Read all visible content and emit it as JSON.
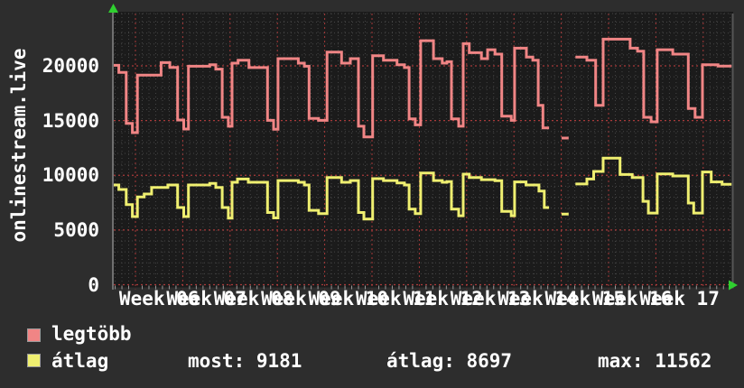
{
  "y_axis": {
    "title": "onlinestream.live",
    "tick_values": [
      0,
      5000,
      10000,
      15000,
      20000
    ]
  },
  "x_axis": {
    "labels": [
      "Week 06",
      "Week 07",
      "Week 08",
      "Week 09",
      "Week 10",
      "Week 11",
      "Week 12",
      "Week 13",
      "Week 14",
      "Week 15",
      "Week 16",
      "Week 17"
    ]
  },
  "legend": {
    "series": [
      {
        "label": "legtöbb",
        "color": "#f08585"
      },
      {
        "label": "átlag",
        "color": "#efef70"
      }
    ]
  },
  "stats": {
    "most": "most: 9181",
    "atlag": "átlag: 8697",
    "max": "max: 11562"
  },
  "colors": {
    "background": "#2d2d2d",
    "plot_background": "#1b1b1b",
    "grid_minor": "#454545",
    "grid_major_red": "#a83a3a",
    "axis_border": "#6f6f6f",
    "arrow_green": "#2fd02f",
    "text": "#ffffff"
  },
  "chart_data": {
    "type": "line",
    "line_style": "step",
    "title": "onlinestream.live",
    "x_unit": "days",
    "x_range_days": [
      0,
      91.4
    ],
    "first_week_gridline_day": 3.2,
    "days_per_week": 7,
    "ylim": [
      0,
      24780
    ],
    "y_major_step": 5000,
    "y_minor_step": 1000,
    "grid": true,
    "legend_position": "bottom",
    "stats": {
      "most": 9181,
      "atlag": 8697,
      "max": 11562
    },
    "series": [
      {
        "name": "legtöbb",
        "color": "#f08585",
        "points": [
          [
            0,
            20050
          ],
          [
            0.75,
            19400
          ],
          [
            1.85,
            14750
          ],
          [
            2.75,
            13900
          ],
          [
            3.5,
            19150
          ],
          [
            7.0,
            20300
          ],
          [
            8.3,
            19850
          ],
          [
            9.45,
            15050
          ],
          [
            10.35,
            14230
          ],
          [
            11.05,
            19970
          ],
          [
            14.2,
            20110
          ],
          [
            15.1,
            19700
          ],
          [
            16.05,
            15300
          ],
          [
            16.95,
            14480
          ],
          [
            17.5,
            20250
          ],
          [
            18.4,
            20520
          ],
          [
            20.0,
            19840
          ],
          [
            22.75,
            15020
          ],
          [
            23.65,
            14200
          ],
          [
            24.3,
            20660
          ],
          [
            27.3,
            20250
          ],
          [
            28.2,
            19970
          ],
          [
            28.9,
            15200
          ],
          [
            30.3,
            15020
          ],
          [
            31.55,
            21260
          ],
          [
            33.7,
            20250
          ],
          [
            35.0,
            20660
          ],
          [
            36.2,
            14480
          ],
          [
            37.0,
            13500
          ],
          [
            38.3,
            20930
          ],
          [
            39.9,
            20520
          ],
          [
            41.9,
            20110
          ],
          [
            43.0,
            19840
          ],
          [
            43.7,
            15150
          ],
          [
            44.6,
            14610
          ],
          [
            45.4,
            22300
          ],
          [
            47.3,
            20660
          ],
          [
            48.6,
            20250
          ],
          [
            49.3,
            20380
          ],
          [
            49.96,
            15150
          ],
          [
            51.03,
            14480
          ],
          [
            51.7,
            22030
          ],
          [
            52.6,
            21200
          ],
          [
            54.4,
            20660
          ],
          [
            55.3,
            21480
          ],
          [
            56.4,
            21070
          ],
          [
            57.4,
            15400
          ],
          [
            58.8,
            15020
          ],
          [
            59.3,
            21620
          ],
          [
            61.05,
            20800
          ],
          [
            62.0,
            20520
          ],
          [
            62.8,
            16400
          ],
          [
            63.5,
            14330
          ],
          [
            64.4,
            null
          ],
          [
            66.25,
            13400
          ],
          [
            67.3,
            null
          ],
          [
            68.3,
            20800
          ],
          [
            70.0,
            20520
          ],
          [
            71.3,
            16400
          ],
          [
            72.4,
            22440
          ],
          [
            76.4,
            21620
          ],
          [
            77.5,
            21340
          ],
          [
            78.4,
            15300
          ],
          [
            79.5,
            14890
          ],
          [
            80.4,
            21480
          ],
          [
            82.7,
            21070
          ],
          [
            85.0,
            16100
          ],
          [
            86.0,
            15300
          ],
          [
            87.1,
            20110
          ],
          [
            89.4,
            19980
          ]
        ]
      },
      {
        "name": "átlag",
        "color": "#efef70",
        "points": [
          [
            0,
            9110
          ],
          [
            0.75,
            8700
          ],
          [
            1.85,
            7320
          ],
          [
            2.75,
            6230
          ],
          [
            3.5,
            8020
          ],
          [
            4.5,
            8290
          ],
          [
            5.6,
            8890
          ],
          [
            8.0,
            9110
          ],
          [
            9.45,
            7050
          ],
          [
            10.35,
            6230
          ],
          [
            11.05,
            9110
          ],
          [
            14.2,
            9250
          ],
          [
            15.1,
            8890
          ],
          [
            16.05,
            7050
          ],
          [
            16.95,
            6090
          ],
          [
            17.5,
            9360
          ],
          [
            18.3,
            9660
          ],
          [
            19.9,
            9360
          ],
          [
            22.75,
            6600
          ],
          [
            23.65,
            6100
          ],
          [
            24.3,
            9520
          ],
          [
            27.3,
            9360
          ],
          [
            28.2,
            9110
          ],
          [
            28.9,
            6800
          ],
          [
            30.3,
            6500
          ],
          [
            31.55,
            9800
          ],
          [
            33.7,
            9360
          ],
          [
            35.0,
            9520
          ],
          [
            36.2,
            6600
          ],
          [
            37.0,
            6000
          ],
          [
            38.3,
            9690
          ],
          [
            39.9,
            9520
          ],
          [
            41.9,
            9300
          ],
          [
            43.0,
            9110
          ],
          [
            43.7,
            6900
          ],
          [
            44.6,
            6500
          ],
          [
            45.4,
            10200
          ],
          [
            47.3,
            9520
          ],
          [
            48.6,
            9360
          ],
          [
            49.3,
            9430
          ],
          [
            49.96,
            6900
          ],
          [
            51.03,
            6300
          ],
          [
            51.7,
            10100
          ],
          [
            52.6,
            9800
          ],
          [
            54.4,
            9600
          ],
          [
            56.4,
            9500
          ],
          [
            57.4,
            6700
          ],
          [
            58.8,
            6300
          ],
          [
            59.3,
            9390
          ],
          [
            61.0,
            9110
          ],
          [
            62.9,
            8560
          ],
          [
            63.7,
            7050
          ],
          [
            64.4,
            null
          ],
          [
            66.25,
            6450
          ],
          [
            67.3,
            null
          ],
          [
            68.3,
            9200
          ],
          [
            70.0,
            9660
          ],
          [
            71.0,
            10350
          ],
          [
            72.4,
            11562
          ],
          [
            74.9,
            10070
          ],
          [
            76.7,
            9800
          ],
          [
            78.3,
            7620
          ],
          [
            79.1,
            6550
          ],
          [
            80.4,
            10130
          ],
          [
            82.7,
            9940
          ],
          [
            85.0,
            7460
          ],
          [
            85.8,
            6550
          ],
          [
            87.1,
            10300
          ],
          [
            88.4,
            9390
          ],
          [
            90.0,
            9181
          ]
        ]
      }
    ]
  }
}
